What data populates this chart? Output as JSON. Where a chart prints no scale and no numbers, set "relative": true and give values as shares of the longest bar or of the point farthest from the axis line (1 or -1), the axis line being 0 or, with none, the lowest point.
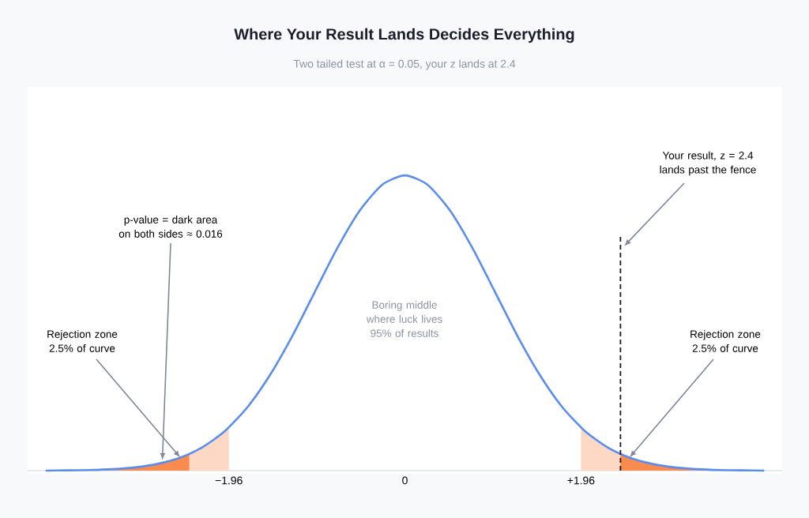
{
  "chart_data": {
    "type": "line",
    "title": "Where Your Result Lands Decides Everything",
    "subtitle": "Two tailed test at α = 0.05, your z lands at 2.4",
    "relative": true,
    "xlim": [
      -4.2,
      4.2
    ],
    "xticks": [
      {
        "value": -1.96,
        "label": "−1.96"
      },
      0,
      {
        "value": 1.96,
        "label": "+1.96"
      }
    ],
    "series": [
      {
        "type": "area",
        "color": "#fdd8c4",
        "x": [
          -2.4,
          -2.2,
          -1.96
        ],
        "values": [
          0.056,
          0.089,
          0.146
        ]
      },
      {
        "type": "area",
        "color": "#f98b4f",
        "x": [
          -4,
          -3.5,
          -3,
          -2.75,
          -2.4
        ],
        "values": [
          0,
          0.002,
          0.011,
          0.023,
          0.056
        ]
      },
      {
        "type": "area",
        "color": "#fdd8c4",
        "x": [
          1.96,
          2.2,
          2.4
        ],
        "values": [
          0.146,
          0.089,
          0.056
        ]
      },
      {
        "type": "area",
        "color": "#f98b4f",
        "x": [
          2.4,
          2.75,
          3,
          3.5,
          4
        ],
        "values": [
          0.056,
          0.023,
          0.011,
          0.002,
          0
        ]
      },
      {
        "color": "#5b8def",
        "x": [
          -4,
          -3.75,
          -3.5,
          -3.25,
          -3,
          -2.75,
          -2.5,
          -2.25,
          -2,
          -1.75,
          -1.5,
          -1.25,
          -1,
          -0.75,
          -0.5,
          -0.25,
          0,
          0.25,
          0.5,
          0.75,
          1,
          1.25,
          1.5,
          1.75,
          2,
          2.25,
          2.5,
          2.75,
          3,
          3.25,
          3.5,
          3.75,
          4
        ],
        "values": [
          0,
          0.001,
          0.002,
          0.005,
          0.011,
          0.023,
          0.044,
          0.08,
          0.135,
          0.216,
          0.325,
          0.458,
          0.607,
          0.755,
          0.882,
          0.969,
          1,
          0.969,
          0.882,
          0.755,
          0.607,
          0.458,
          0.325,
          0.216,
          0.135,
          0.08,
          0.044,
          0.023,
          0.011,
          0.005,
          0.002,
          0.001,
          0
        ]
      }
    ],
    "ref_lines": [
      {
        "axis": "x",
        "value": 2.4,
        "color": "#1a1a1a",
        "line_style": "dashed"
      }
    ],
    "annotations": [
      {
        "text": "p-value = dark area on both sides ≈ 0.016",
        "x": -2.7,
        "y": 0.035
      },
      {
        "text": "Rejection zone 2.5% of curve",
        "x": -2.5,
        "y": 0.044
      },
      "Boring middle where luck lives 95% of results",
      {
        "text": "Your result, z = 2.4 lands past the fence",
        "x": 2.44,
        "y": 0.76
      },
      {
        "text": "Rejection zone 2.5% of curve",
        "x": 2.5,
        "y": 0.044
      }
    ]
  }
}
